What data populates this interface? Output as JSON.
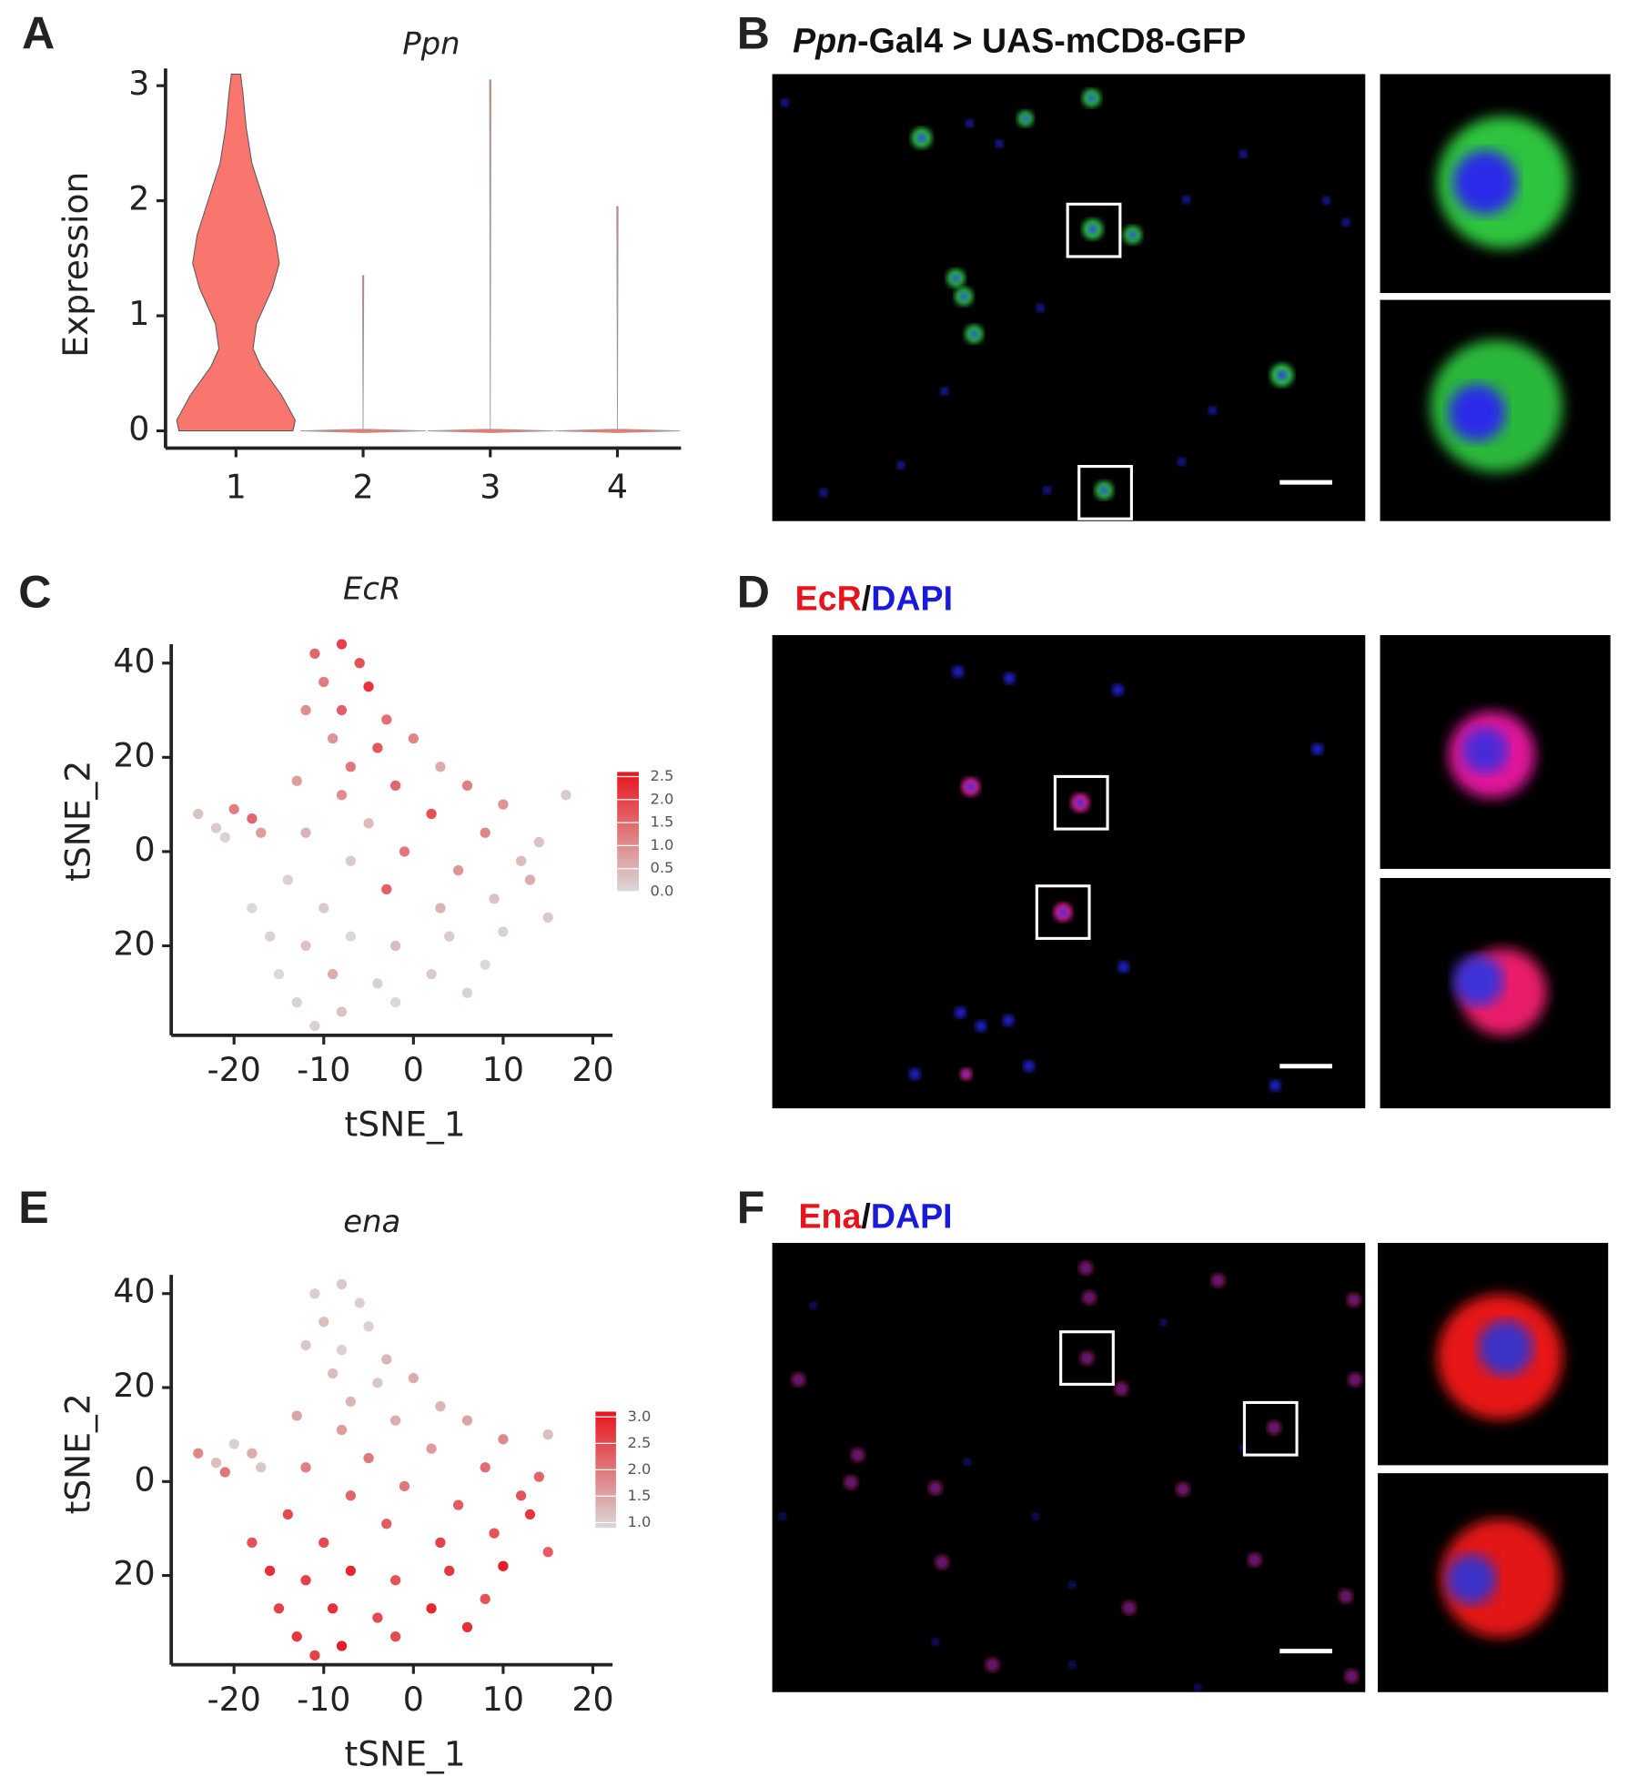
{
  "panels": {
    "letters": [
      "A",
      "B",
      "C",
      "D",
      "E",
      "F"
    ],
    "images": [
      {
        "title_parts": [
          {
            "text": "Ppn",
            "color": "#111111",
            "italic": true
          },
          {
            "text": "-Gal4 > UAS-mCD8-GFP",
            "color": "#111111",
            "italic": false
          }
        ]
      },
      {
        "title_parts": [
          {
            "text": "EcR",
            "color": "#e8141c",
            "italic": false
          },
          {
            "text": "/",
            "color": "#111111",
            "italic": false
          },
          {
            "text": "DAPI",
            "color": "#1a1adb",
            "italic": false
          }
        ]
      },
      {
        "title_parts": [
          {
            "text": "Ena",
            "color": "#e8141c",
            "italic": false
          },
          {
            "text": "/",
            "color": "#111111",
            "italic": false
          },
          {
            "text": "DAPI",
            "color": "#1a1adb",
            "italic": false
          }
        ]
      }
    ]
  },
  "chart_data": [
    {
      "type": "violin",
      "title": "Ppn",
      "y_label": "Expression",
      "categories": [
        "1",
        "2",
        "3",
        "4"
      ],
      "values": [
        3.1,
        1.35,
        3.05,
        1.95
      ],
      "color": "#f8766d",
      "ylim": [
        -0.15,
        3.15
      ],
      "yticks": [
        0,
        1,
        2,
        3
      ]
    },
    {
      "type": "scatter",
      "title": "EcR",
      "x_label": "tSNE_1",
      "y_label": "tSNE_2",
      "xlim": [
        -27,
        22.2
      ],
      "xticks": [
        -20,
        -10,
        0,
        10,
        20
      ],
      "ylim": [
        -39,
        44
      ],
      "yticks": [
        40,
        20,
        0,
        {
          "value": -20,
          "label": "20"
        }
      ],
      "colors": {
        "low": "#d9d9d9",
        "high": "#e8141c"
      },
      "colorbar": {
        "lim": [
          0,
          2.6
        ],
        "ticks": [
          {
            "value": 2.5,
            "label": "2.5"
          },
          {
            "value": 2,
            "label": "2.0"
          },
          1.5,
          {
            "value": 1,
            "label": "1.0"
          },
          0.5,
          {
            "value": 0,
            "label": "0.0"
          }
        ]
      },
      "series": [
        {
          "x": [
            -24,
            -22,
            -20,
            -18,
            -17,
            -21,
            -11,
            -8,
            -6,
            -10,
            -5,
            -12,
            -8,
            -3,
            -9,
            -4,
            0,
            -7,
            -13,
            -8,
            -2,
            3,
            6,
            10,
            2,
            -5,
            -12,
            8,
            14,
            17,
            12,
            5,
            -1,
            -7,
            -14,
            -3,
            3,
            9,
            13,
            -10,
            -16,
            -12,
            -7,
            -2,
            4,
            10,
            -15,
            -9,
            -4,
            2,
            8,
            -13,
            -8,
            -2,
            -11,
            15,
            6,
            -18
          ],
          "y": [
            8,
            5,
            9,
            7,
            4,
            3,
            42,
            44,
            40,
            36,
            35,
            30,
            30,
            28,
            24,
            22,
            24,
            18,
            15,
            12,
            14,
            18,
            14,
            10,
            8,
            6,
            4,
            4,
            2,
            12,
            -2,
            -4,
            0,
            -2,
            -6,
            -8,
            -12,
            -10,
            -6,
            -12,
            -18,
            -20,
            -18,
            -20,
            -18,
            -17,
            -26,
            -26,
            -28,
            -26,
            -24,
            -32,
            -34,
            -32,
            -37,
            -14,
            -30,
            -12
          ],
          "values": [
            0.3,
            0.2,
            1.2,
            1.5,
            0.8,
            0.1,
            1.5,
            2.0,
            1.8,
            1.2,
            2.2,
            1.0,
            1.6,
            1.4,
            0.9,
            1.7,
            1.1,
            1.3,
            0.8,
            1.0,
            1.5,
            0.6,
            1.2,
            0.9,
            1.8,
            0.4,
            0.5,
            1.1,
            0.3,
            0.2,
            0.4,
            0.9,
            1.3,
            0.2,
            0.1,
            1.6,
            0.5,
            0.3,
            0.6,
            0.2,
            0.1,
            0.3,
            0.0,
            0.4,
            0.2,
            0.1,
            0.0,
            0.6,
            0.1,
            0.2,
            0.0,
            0.1,
            0.3,
            0.0,
            0.1,
            0.2,
            0.1,
            0.0
          ]
        }
      ]
    },
    {
      "type": "scatter",
      "title": "ena",
      "x_label": "tSNE_1",
      "y_label": "tSNE_2",
      "xlim": [
        -27,
        22.2
      ],
      "xticks": [
        -20,
        -10,
        0,
        10,
        20
      ],
      "ylim": [
        -39,
        44
      ],
      "yticks": [
        40,
        20,
        0,
        {
          "value": -20,
          "label": "20"
        }
      ],
      "colors": {
        "low": "#d9d9d9",
        "high": "#e8141c"
      },
      "colorbar": {
        "lim": [
          0.9,
          3.1
        ],
        "ticks": [
          {
            "value": 3,
            "label": "3.0"
          },
          2.5,
          {
            "value": 2,
            "label": "2.0"
          },
          1.5,
          {
            "value": 1,
            "label": "1.0"
          }
        ],
        "note": null
      },
      "series": [
        {
          "x": [
            -24,
            -22,
            -20,
            -18,
            -17,
            -21,
            -11,
            -8,
            -6,
            -10,
            -5,
            -12,
            -8,
            -3,
            -9,
            -4,
            0,
            -7,
            -13,
            -8,
            -2,
            3,
            6,
            10,
            2,
            -5,
            -12,
            8,
            14,
            15,
            12,
            5,
            -1,
            -7,
            -14,
            -3,
            3,
            9,
            13,
            -10,
            -16,
            -12,
            -7,
            -2,
            4,
            10,
            -15,
            -9,
            -4,
            2,
            8,
            -13,
            -8,
            -2,
            -11,
            15,
            6,
            -18
          ],
          "y": [
            6,
            4,
            8,
            6,
            3,
            2,
            40,
            42,
            38,
            34,
            33,
            29,
            28,
            26,
            23,
            21,
            22,
            17,
            14,
            11,
            13,
            16,
            13,
            9,
            7,
            5,
            3,
            3,
            1,
            10,
            -3,
            -5,
            -1,
            -3,
            -7,
            -9,
            -13,
            -11,
            -7,
            -13,
            -19,
            -21,
            -19,
            -21,
            -19,
            -18,
            -27,
            -27,
            -29,
            -27,
            -25,
            -33,
            -35,
            -33,
            -37,
            -15,
            -31,
            -13
          ],
          "values": [
            1.8,
            1.2,
            1.0,
            1.4,
            1.1,
            2.0,
            1.0,
            1.1,
            1.0,
            1.2,
            1.0,
            1.1,
            1.0,
            1.3,
            1.2,
            1.1,
            1.4,
            1.3,
            1.5,
            1.6,
            1.4,
            1.3,
            1.5,
            1.8,
            1.6,
            2.0,
            1.9,
            2.1,
            2.2,
            1.2,
            2.4,
            2.3,
            2.0,
            2.2,
            2.5,
            2.3,
            2.6,
            2.4,
            2.7,
            2.5,
            2.8,
            2.6,
            2.9,
            2.4,
            2.7,
            3.0,
            2.6,
            2.8,
            2.5,
            2.9,
            2.4,
            2.7,
            3.0,
            2.5,
            2.6,
            2.3,
            2.8,
            2.4
          ]
        }
      ]
    }
  ]
}
